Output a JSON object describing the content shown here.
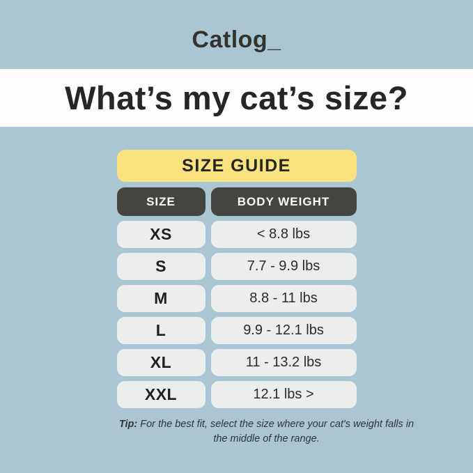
{
  "brand": {
    "logo": "Catlog_"
  },
  "heading": {
    "title": "What’s my cat’s size?"
  },
  "size_guide": {
    "title": "SIZE GUIDE",
    "columns": [
      "SIZE",
      "BODY WEIGHT"
    ],
    "rows": [
      {
        "size": "XS",
        "weight": "< 8.8 lbs"
      },
      {
        "size": "S",
        "weight": "7.7 - 9.9 lbs"
      },
      {
        "size": "M",
        "weight": "8.8 - 11 lbs"
      },
      {
        "size": "L",
        "weight": "9.9 - 12.1 lbs"
      },
      {
        "size": "XL",
        "weight": "11 - 13.2 lbs"
      },
      {
        "size": "XXL",
        "weight": "12.1 lbs >"
      }
    ],
    "tip_label": "Tip:",
    "tip_text": "For the best fit, select the size where your cat's weight falls in the middle of the range."
  },
  "colors": {
    "background": "#A9C6D2",
    "band": "#FEFEFE",
    "guide_title_bg": "#FAE37F",
    "header_bg": "#45443E",
    "row_bg": "#ECEDED",
    "text_dark": "#262626"
  },
  "chart_data": {
    "type": "table",
    "title": "SIZE GUIDE",
    "columns": [
      "SIZE",
      "BODY WEIGHT"
    ],
    "rows": [
      [
        "XS",
        "< 8.8 lbs"
      ],
      [
        "S",
        "7.7 - 9.9 lbs"
      ],
      [
        "M",
        "8.8 - 11 lbs"
      ],
      [
        "L",
        "9.9 - 12.1 lbs"
      ],
      [
        "XL",
        "11 - 13.2 lbs"
      ],
      [
        "XXL",
        "12.1 lbs >"
      ]
    ],
    "weight_ranges_lbs": [
      {
        "size": "XS",
        "min": null,
        "max": 8.8
      },
      {
        "size": "S",
        "min": 7.7,
        "max": 9.9
      },
      {
        "size": "M",
        "min": 8.8,
        "max": 11
      },
      {
        "size": "L",
        "min": 9.9,
        "max": 12.1
      },
      {
        "size": "XL",
        "min": 11,
        "max": 13.2
      },
      {
        "size": "XXL",
        "min": 12.1,
        "max": null
      }
    ]
  }
}
